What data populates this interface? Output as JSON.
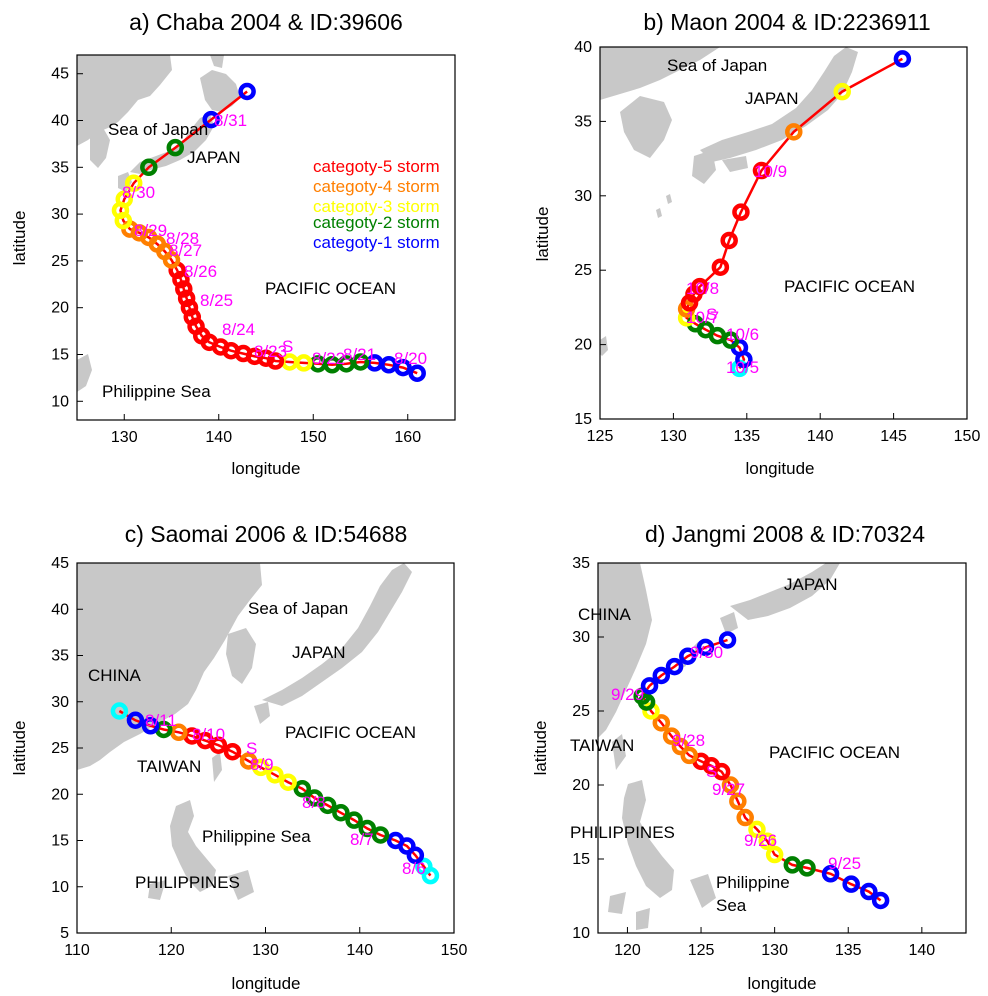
{
  "figure": {
    "xlabel": "longitude",
    "ylabel": "latitude",
    "legend": [
      {
        "label": "categoty-5 storm",
        "color": "#ff0000"
      },
      {
        "label": "categoty-4 storm",
        "color": "#ff7f00"
      },
      {
        "label": "categoty-3 storm",
        "color": "#ffff00"
      },
      {
        "label": "categoty-2 storm",
        "color": "#008000"
      },
      {
        "label": "categoty-1 storm",
        "color": "#0000ff"
      }
    ],
    "colors": {
      "land": "#c8c8c8",
      "track": "#ff0000",
      "cat5": "#ff0000",
      "cat4": "#ff7f00",
      "cat3": "#ffff00",
      "cat2": "#008000",
      "cat1": "#0000ff",
      "weak": "#00ffff",
      "date": "#ff00ff"
    }
  },
  "chart_data": [
    {
      "type": "scatter",
      "title": "a) Chaba 2004 & ID:39606",
      "xlabel": "longitude",
      "ylabel": "latitude",
      "xlim": [
        125,
        165
      ],
      "ylim": [
        8,
        47
      ],
      "xticks": [
        130,
        140,
        150,
        160
      ],
      "yticks": [
        10,
        15,
        20,
        25,
        30,
        35,
        40,
        45
      ],
      "places": [
        "Sea of Japan",
        "JAPAN",
        "PACIFIC OCEAN",
        "Philippine Sea"
      ],
      "dates": [
        "8/31",
        "8/30",
        "8/29",
        "8/28",
        "8/27",
        "8/26",
        "8/25",
        "8/24",
        "8/23",
        "8/22",
        "8/21",
        "8/20"
      ],
      "start_marker": "S",
      "track": [
        {
          "lon": 161.0,
          "lat": 13.0,
          "cat": 1
        },
        {
          "lon": 159.5,
          "lat": 13.6,
          "cat": 1
        },
        {
          "lon": 158.0,
          "lat": 13.9,
          "cat": 1
        },
        {
          "lon": 156.5,
          "lat": 14.1,
          "cat": 1
        },
        {
          "lon": 155.0,
          "lat": 14.2,
          "cat": 2
        },
        {
          "lon": 153.5,
          "lat": 14.0,
          "cat": 2
        },
        {
          "lon": 152.0,
          "lat": 13.9,
          "cat": 2
        },
        {
          "lon": 150.5,
          "lat": 14.0,
          "cat": 2
        },
        {
          "lon": 149.0,
          "lat": 14.1,
          "cat": 3
        },
        {
          "lon": 147.5,
          "lat": 14.2,
          "cat": 3
        },
        {
          "lon": 146.0,
          "lat": 14.3,
          "cat": 5
        },
        {
          "lon": 145.0,
          "lat": 14.6,
          "cat": 5
        },
        {
          "lon": 143.8,
          "lat": 14.8,
          "cat": 5
        },
        {
          "lon": 142.6,
          "lat": 15.1,
          "cat": 5
        },
        {
          "lon": 141.3,
          "lat": 15.4,
          "cat": 5
        },
        {
          "lon": 140.2,
          "lat": 15.8,
          "cat": 5
        },
        {
          "lon": 139.0,
          "lat": 16.3,
          "cat": 5
        },
        {
          "lon": 138.2,
          "lat": 17.0,
          "cat": 5
        },
        {
          "lon": 137.6,
          "lat": 18.0,
          "cat": 5
        },
        {
          "lon": 137.2,
          "lat": 19.0,
          "cat": 5
        },
        {
          "lon": 136.9,
          "lat": 20.0,
          "cat": 5
        },
        {
          "lon": 136.6,
          "lat": 21.0,
          "cat": 5
        },
        {
          "lon": 136.3,
          "lat": 22.0,
          "cat": 5
        },
        {
          "lon": 136.0,
          "lat": 23.0,
          "cat": 5
        },
        {
          "lon": 135.6,
          "lat": 24.0,
          "cat": 5
        },
        {
          "lon": 135.0,
          "lat": 25.1,
          "cat": 4
        },
        {
          "lon": 134.3,
          "lat": 26.0,
          "cat": 4
        },
        {
          "lon": 133.5,
          "lat": 26.8,
          "cat": 4
        },
        {
          "lon": 132.6,
          "lat": 27.5,
          "cat": 4
        },
        {
          "lon": 131.6,
          "lat": 28.0,
          "cat": 4
        },
        {
          "lon": 130.6,
          "lat": 28.4,
          "cat": 4
        },
        {
          "lon": 129.9,
          "lat": 29.3,
          "cat": 3
        },
        {
          "lon": 129.6,
          "lat": 30.4,
          "cat": 3
        },
        {
          "lon": 130.0,
          "lat": 31.6,
          "cat": 3
        },
        {
          "lon": 131.0,
          "lat": 33.3,
          "cat": 3
        },
        {
          "lon": 132.6,
          "lat": 35.0,
          "cat": 2
        },
        {
          "lon": 135.4,
          "lat": 37.1,
          "cat": 2
        },
        {
          "lon": 139.2,
          "lat": 40.1,
          "cat": 1
        },
        {
          "lon": 143.0,
          "lat": 43.1,
          "cat": 1
        }
      ]
    },
    {
      "type": "scatter",
      "title": "b) Maon 2004 & ID:2236911",
      "xlabel": "longitude",
      "ylabel": "latitude",
      "xlim": [
        125,
        150
      ],
      "ylim": [
        15,
        40
      ],
      "xticks": [
        125,
        130,
        135,
        140,
        145,
        150
      ],
      "yticks": [
        15,
        20,
        25,
        30,
        35,
        40
      ],
      "places": [
        "Sea of Japan",
        "JAPAN",
        "PACIFIC OCEAN"
      ],
      "dates": [
        "10/9",
        "10/8",
        "10/7",
        "10/6",
        "10/5"
      ],
      "start_marker": "S",
      "track": [
        {
          "lon": 134.5,
          "lat": 18.4,
          "cat": 0
        },
        {
          "lon": 134.8,
          "lat": 19.0,
          "cat": 1
        },
        {
          "lon": 134.5,
          "lat": 19.8,
          "cat": 1
        },
        {
          "lon": 133.9,
          "lat": 20.3,
          "cat": 2
        },
        {
          "lon": 133.0,
          "lat": 20.6,
          "cat": 2
        },
        {
          "lon": 132.2,
          "lat": 21.0,
          "cat": 2
        },
        {
          "lon": 131.5,
          "lat": 21.4,
          "cat": 2
        },
        {
          "lon": 130.9,
          "lat": 21.8,
          "cat": 3
        },
        {
          "lon": 130.9,
          "lat": 22.4,
          "cat": 4
        },
        {
          "lon": 131.1,
          "lat": 22.8,
          "cat": 5
        },
        {
          "lon": 131.4,
          "lat": 23.4,
          "cat": 5
        },
        {
          "lon": 131.8,
          "lat": 23.9,
          "cat": 5
        },
        {
          "lon": 133.2,
          "lat": 25.2,
          "cat": 5
        },
        {
          "lon": 133.8,
          "lat": 27.0,
          "cat": 5
        },
        {
          "lon": 134.6,
          "lat": 28.9,
          "cat": 5
        },
        {
          "lon": 136.0,
          "lat": 31.7,
          "cat": 5
        },
        {
          "lon": 138.2,
          "lat": 34.3,
          "cat": 4
        },
        {
          "lon": 141.5,
          "lat": 37.0,
          "cat": 3
        },
        {
          "lon": 145.6,
          "lat": 39.2,
          "cat": 1
        }
      ]
    },
    {
      "type": "scatter",
      "title": "c) Saomai 2006 & ID:54688",
      "xlabel": "longitude",
      "ylabel": "latitude",
      "xlim": [
        110,
        150
      ],
      "ylim": [
        5,
        45
      ],
      "xticks": [
        110,
        120,
        130,
        140,
        150
      ],
      "yticks": [
        5,
        10,
        15,
        20,
        25,
        30,
        35,
        40,
        45
      ],
      "places": [
        "Sea of Japan",
        "JAPAN",
        "CHINA",
        "PACIFIC OCEAN",
        "TAIWAN",
        "Philippine Sea",
        "PHILIPPINES"
      ],
      "dates": [
        "8/11",
        "8/10",
        "8/9",
        "8/8",
        "8/7",
        "8/6"
      ],
      "start_marker": "S",
      "track": [
        {
          "lon": 147.5,
          "lat": 11.2,
          "cat": 0
        },
        {
          "lon": 146.8,
          "lat": 12.2,
          "cat": 0
        },
        {
          "lon": 145.9,
          "lat": 13.4,
          "cat": 1
        },
        {
          "lon": 145.0,
          "lat": 14.4,
          "cat": 1
        },
        {
          "lon": 143.8,
          "lat": 15.0,
          "cat": 1
        },
        {
          "lon": 142.2,
          "lat": 15.6,
          "cat": 2
        },
        {
          "lon": 140.8,
          "lat": 16.3,
          "cat": 2
        },
        {
          "lon": 139.4,
          "lat": 17.2,
          "cat": 2
        },
        {
          "lon": 138.0,
          "lat": 18.0,
          "cat": 2
        },
        {
          "lon": 136.6,
          "lat": 18.8,
          "cat": 2
        },
        {
          "lon": 135.2,
          "lat": 19.6,
          "cat": 2
        },
        {
          "lon": 133.9,
          "lat": 20.6,
          "cat": 2
        },
        {
          "lon": 132.4,
          "lat": 21.3,
          "cat": 3
        },
        {
          "lon": 131.0,
          "lat": 22.1,
          "cat": 3
        },
        {
          "lon": 129.5,
          "lat": 22.9,
          "cat": 3
        },
        {
          "lon": 128.2,
          "lat": 23.6,
          "cat": 4
        },
        {
          "lon": 126.5,
          "lat": 24.6,
          "cat": 5
        },
        {
          "lon": 125.0,
          "lat": 25.3,
          "cat": 5
        },
        {
          "lon": 123.6,
          "lat": 25.8,
          "cat": 5
        },
        {
          "lon": 122.2,
          "lat": 26.3,
          "cat": 5
        },
        {
          "lon": 120.8,
          "lat": 26.7,
          "cat": 4
        },
        {
          "lon": 119.2,
          "lat": 27.0,
          "cat": 2
        },
        {
          "lon": 117.8,
          "lat": 27.4,
          "cat": 1
        },
        {
          "lon": 116.2,
          "lat": 28.0,
          "cat": 1
        },
        {
          "lon": 114.5,
          "lat": 29.0,
          "cat": 0
        }
      ]
    },
    {
      "type": "scatter",
      "title": "d) Jangmi 2008 & ID:70324",
      "xlabel": "longitude",
      "ylabel": "latitude",
      "xlim": [
        118,
        143
      ],
      "ylim": [
        10,
        35
      ],
      "xticks": [
        120,
        125,
        130,
        135,
        140
      ],
      "yticks": [
        10,
        15,
        20,
        25,
        30,
        35
      ],
      "places": [
        "JAPAN",
        "CHINA",
        "PACIFIC OCEAN",
        "TAIWAN",
        "PHILIPPINES",
        "Philippine",
        "Sea"
      ],
      "dates": [
        "9/30",
        "9/29",
        "9/28",
        "9/27",
        "9/26",
        "9/25"
      ],
      "start_marker": "S",
      "track": [
        {
          "lon": 137.2,
          "lat": 12.2,
          "cat": 1
        },
        {
          "lon": 136.4,
          "lat": 12.8,
          "cat": 1
        },
        {
          "lon": 135.2,
          "lat": 13.3,
          "cat": 1
        },
        {
          "lon": 133.8,
          "lat": 14.0,
          "cat": 1
        },
        {
          "lon": 132.2,
          "lat": 14.4,
          "cat": 2
        },
        {
          "lon": 131.2,
          "lat": 14.6,
          "cat": 2
        },
        {
          "lon": 130.0,
          "lat": 15.3,
          "cat": 3
        },
        {
          "lon": 129.5,
          "lat": 16.2,
          "cat": 3
        },
        {
          "lon": 128.8,
          "lat": 17.0,
          "cat": 3
        },
        {
          "lon": 128.0,
          "lat": 17.8,
          "cat": 4
        },
        {
          "lon": 127.5,
          "lat": 18.9,
          "cat": 4
        },
        {
          "lon": 127.0,
          "lat": 20.0,
          "cat": 4
        },
        {
          "lon": 126.4,
          "lat": 20.9,
          "cat": 5
        },
        {
          "lon": 125.7,
          "lat": 21.3,
          "cat": 5
        },
        {
          "lon": 125.0,
          "lat": 21.6,
          "cat": 5
        },
        {
          "lon": 124.2,
          "lat": 22.0,
          "cat": 4
        },
        {
          "lon": 123.6,
          "lat": 22.6,
          "cat": 4
        },
        {
          "lon": 123.0,
          "lat": 23.3,
          "cat": 4
        },
        {
          "lon": 122.3,
          "lat": 24.2,
          "cat": 4
        },
        {
          "lon": 121.6,
          "lat": 25.0,
          "cat": 3
        },
        {
          "lon": 121.3,
          "lat": 25.6,
          "cat": 2
        },
        {
          "lon": 121.0,
          "lat": 26.0,
          "cat": 2
        },
        {
          "lon": 121.5,
          "lat": 26.7,
          "cat": 1
        },
        {
          "lon": 122.3,
          "lat": 27.4,
          "cat": 1
        },
        {
          "lon": 123.2,
          "lat": 28.0,
          "cat": 1
        },
        {
          "lon": 124.1,
          "lat": 28.7,
          "cat": 1
        },
        {
          "lon": 125.3,
          "lat": 29.3,
          "cat": 1
        },
        {
          "lon": 126.8,
          "lat": 29.8,
          "cat": 1
        }
      ]
    }
  ]
}
